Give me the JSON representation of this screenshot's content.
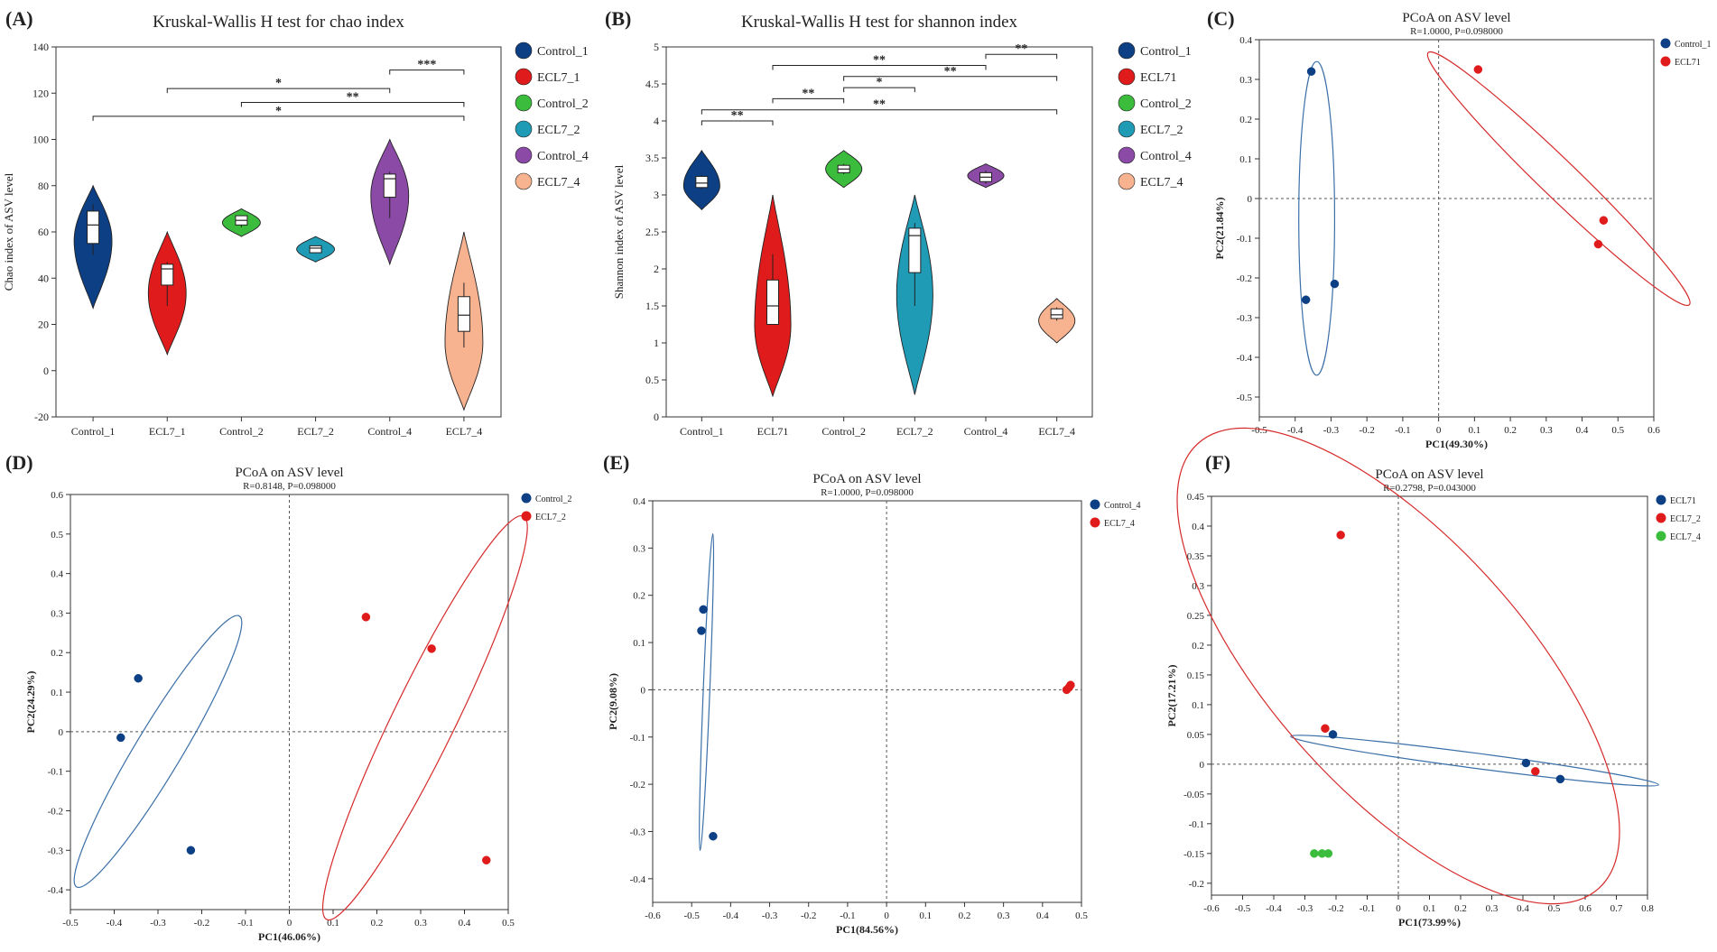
{
  "colors": {
    "navy": "#0d3f85",
    "red": "#e01b1b",
    "green": "#3cbc3c",
    "teal": "#1f9bb6",
    "purple": "#8a4aa6",
    "salmon": "#f7b28f",
    "blue_ellipse": "#3a6fa8",
    "red_ellipse": "#d62a2a"
  },
  "chart_data": [
    {
      "id": "A",
      "panel_label": "(A)",
      "type": "violin",
      "title": "Kruskal-Wallis H test for chao index",
      "ylabel": "Chao index of ASV level",
      "ylim": [
        -20,
        140
      ],
      "yticks": [
        -20,
        0,
        20,
        40,
        60,
        80,
        100,
        120,
        140
      ],
      "categories": [
        "Control_1",
        "ECL7_1",
        "Control_2",
        "ECL7_2",
        "Control_4",
        "ECL7_4"
      ],
      "colors": [
        "#0d3f85",
        "#e01b1b",
        "#3cbc3c",
        "#1f9bb6",
        "#8a4aa6",
        "#f7b28f"
      ],
      "violins": [
        {
          "min": 27,
          "max": 80,
          "peak": 0.55,
          "halfwidth": 0.85,
          "box": [
            55,
            69
          ],
          "median": 63,
          "whisker": [
            50,
            72
          ]
        },
        {
          "min": 7,
          "max": 60,
          "peak": 0.5,
          "halfwidth": 0.85,
          "box": [
            37,
            46
          ],
          "median": 44,
          "whisker": [
            28,
            47
          ]
        },
        {
          "min": 58,
          "max": 70,
          "peak": 0.5,
          "halfwidth": 0.85,
          "box": [
            63,
            67
          ],
          "median": 65,
          "whisker": [
            62,
            67
          ]
        },
        {
          "min": 47,
          "max": 58,
          "peak": 0.5,
          "halfwidth": 0.85,
          "box": [
            51,
            54
          ],
          "median": 53,
          "whisker": [
            51,
            54
          ]
        },
        {
          "min": 46,
          "max": 100,
          "peak": 0.55,
          "halfwidth": 0.85,
          "box": [
            75,
            85
          ],
          "median": 83,
          "whisker": [
            66,
            86
          ]
        },
        {
          "min": -17,
          "max": 60,
          "peak": 0.38,
          "halfwidth": 0.85,
          "box": [
            17,
            32
          ],
          "median": 24,
          "whisker": [
            10,
            38
          ]
        }
      ],
      "significance": [
        {
          "from": 1,
          "to": 4,
          "y": 122,
          "label": "*"
        },
        {
          "from": 4,
          "to": 5,
          "y": 130,
          "label": "***"
        },
        {
          "from": 2,
          "to": 5,
          "y": 116,
          "label": "**"
        },
        {
          "from": 0,
          "to": 5,
          "y": 110,
          "label": "*"
        }
      ],
      "legend": [
        "Control_1",
        "ECL7_1",
        "Control_2",
        "ECL7_2",
        "Control_4",
        "ECL7_4"
      ]
    },
    {
      "id": "B",
      "panel_label": "(B)",
      "type": "violin",
      "title": "Kruskal-Wallis H test for shannon index",
      "ylabel": "Shannon index of ASV level",
      "ylim": [
        0,
        5
      ],
      "yticks": [
        0,
        0.5,
        1,
        1.5,
        2,
        2.5,
        3,
        3.5,
        4,
        4.5,
        5
      ],
      "categories": [
        "Control_1",
        "ECL71",
        "Control_2",
        "ECL7_2",
        "Control_4",
        "ECL7_4"
      ],
      "colors": [
        "#0d3f85",
        "#e01b1b",
        "#3cbc3c",
        "#1f9bb6",
        "#8a4aa6",
        "#f7b28f"
      ],
      "violins": [
        {
          "min": 2.8,
          "max": 3.6,
          "peak": 0.4,
          "halfwidth": 0.85,
          "box": [
            3.1,
            3.25
          ],
          "median": 3.16,
          "whisker": [
            3.08,
            3.27
          ]
        },
        {
          "min": 0.28,
          "max": 3.0,
          "peak": 0.35,
          "halfwidth": 0.85,
          "box": [
            1.25,
            1.85
          ],
          "median": 1.5,
          "whisker": [
            1.25,
            2.2
          ]
        },
        {
          "min": 3.1,
          "max": 3.6,
          "peak": 0.5,
          "halfwidth": 0.85,
          "box": [
            3.3,
            3.4
          ],
          "median": 3.35,
          "whisker": [
            3.28,
            3.42
          ]
        },
        {
          "min": 0.3,
          "max": 3.0,
          "peak": 0.5,
          "halfwidth": 0.85,
          "box": [
            1.95,
            2.55
          ],
          "median": 2.45,
          "whisker": [
            1.5,
            2.62
          ]
        },
        {
          "min": 3.1,
          "max": 3.42,
          "peak": 0.5,
          "halfwidth": 0.85,
          "box": [
            3.18,
            3.3
          ],
          "median": 3.24,
          "whisker": [
            3.15,
            3.33
          ]
        },
        {
          "min": 1.0,
          "max": 1.6,
          "peak": 0.5,
          "halfwidth": 0.85,
          "box": [
            1.33,
            1.46
          ],
          "median": 1.38,
          "whisker": [
            1.3,
            1.48
          ]
        }
      ],
      "significance": [
        {
          "from": 4,
          "to": 5,
          "y": 4.9,
          "label": "**"
        },
        {
          "from": 1,
          "to": 4,
          "y": 4.75,
          "label": "**"
        },
        {
          "from": 2,
          "to": 5,
          "y": 4.6,
          "label": "**"
        },
        {
          "from": 2,
          "to": 3,
          "y": 4.45,
          "label": "*"
        },
        {
          "from": 1,
          "to": 2,
          "y": 4.3,
          "label": "**"
        },
        {
          "from": 0,
          "to": 5,
          "y": 4.15,
          "label": "**"
        },
        {
          "from": 0,
          "to": 1,
          "y": 4.0,
          "label": "**"
        }
      ],
      "legend": [
        "Control_1",
        "ECL71",
        "Control_2",
        "ECL7_2",
        "Control_4",
        "ECL7_4"
      ]
    },
    {
      "id": "C",
      "panel_label": "(C)",
      "type": "scatter",
      "title": "PCoA on ASV level",
      "subtitle": "R=1.0000, P=0.098000",
      "xlabel": "PC1(49.30%)",
      "ylabel": "PC2(21.84%)",
      "xlim": [
        -0.5,
        0.6
      ],
      "ylim": [
        -0.55,
        0.4
      ],
      "xticks": [
        -0.5,
        -0.4,
        -0.3,
        -0.2,
        -0.1,
        0,
        0.1,
        0.2,
        0.3,
        0.4,
        0.5,
        0.6
      ],
      "yticks": [
        -0.5,
        -0.4,
        -0.3,
        -0.2,
        -0.1,
        0,
        0.1,
        0.2,
        0.3,
        0.4
      ],
      "series": [
        {
          "name": "Control_1",
          "color": "#0d3f85",
          "points": [
            [
              -0.355,
              0.32
            ],
            [
              -0.37,
              -0.255
            ],
            [
              -0.29,
              -0.215
            ]
          ],
          "ellipse": {
            "cx": -0.34,
            "cy": -0.05,
            "rx": 0.05,
            "ry": 0.395,
            "angle": 0,
            "color": "#3a6fa8"
          }
        },
        {
          "name": "ECL71",
          "color": "#e01b1b",
          "points": [
            [
              0.11,
              0.325
            ],
            [
              0.46,
              -0.055
            ],
            [
              0.445,
              -0.115
            ]
          ],
          "ellipse": {
            "cx": 0.335,
            "cy": 0.05,
            "rx": 0.34,
            "ry": 0.035,
            "angle": -44,
            "color": "#d62a2a"
          }
        }
      ],
      "legend": [
        "Control_1",
        "ECL71"
      ]
    },
    {
      "id": "D",
      "panel_label": "(D)",
      "type": "scatter",
      "title": "PCoA on ASV level",
      "subtitle": "R=0.8148, P=0.098000",
      "xlabel": "PC1(46.06%)",
      "ylabel": "PC2(24.29%)",
      "xlim": [
        -0.5,
        0.5
      ],
      "ylim": [
        -0.45,
        0.6
      ],
      "xticks": [
        -0.5,
        -0.4,
        -0.3,
        -0.2,
        -0.1,
        0,
        0.1,
        0.2,
        0.3,
        0.4,
        0.5
      ],
      "yticks": [
        -0.4,
        -0.3,
        -0.2,
        -0.1,
        0,
        0.1,
        0.2,
        0.3,
        0.4,
        0.5,
        0.6
      ],
      "series": [
        {
          "name": "Control_2",
          "color": "#0d3f85",
          "points": [
            [
              -0.345,
              0.135
            ],
            [
              -0.385,
              -0.015
            ],
            [
              -0.225,
              -0.3
            ]
          ],
          "ellipse": {
            "cx": -0.3,
            "cy": -0.05,
            "rx": 0.28,
            "ry": 0.04,
            "angle": 59,
            "color": "#3a6fa8"
          }
        },
        {
          "name": "ECL7_2",
          "color": "#e01b1b",
          "points": [
            [
              0.175,
              0.29
            ],
            [
              0.325,
              0.21
            ],
            [
              0.45,
              -0.325
            ]
          ],
          "ellipse": {
            "cx": 0.31,
            "cy": 0.035,
            "rx": 0.41,
            "ry": 0.055,
            "angle": 64,
            "color": "#d62a2a"
          }
        }
      ],
      "legend": [
        "Control_2",
        "ECL7_2"
      ]
    },
    {
      "id": "E",
      "panel_label": "(E)",
      "type": "scatter",
      "title": "PCoA on ASV level",
      "subtitle": "R=1.0000, P=0.098000",
      "xlabel": "PC1(84.56%)",
      "ylabel": "PC2(9.08%)",
      "xlim": [
        -0.6,
        0.5
      ],
      "ylim": [
        -0.45,
        0.4
      ],
      "xticks": [
        -0.6,
        -0.5,
        -0.4,
        -0.3,
        -0.2,
        -0.1,
        0,
        0.1,
        0.2,
        0.3,
        0.4,
        0.5
      ],
      "yticks": [
        -0.4,
        -0.3,
        -0.2,
        -0.1,
        0,
        0.1,
        0.2,
        0.3,
        0.4
      ],
      "series": [
        {
          "name": "Control_4",
          "color": "#0d3f85",
          "points": [
            [
              -0.47,
              0.17
            ],
            [
              -0.475,
              0.125
            ],
            [
              -0.445,
              -0.31
            ]
          ],
          "ellipse": {
            "cx": -0.462,
            "cy": -0.005,
            "rx": 0.325,
            "ry": 0.008,
            "angle": 87.7,
            "color": "#3a6fa8"
          }
        },
        {
          "name": "ECL7_4",
          "color": "#e01b1b",
          "points": [
            [
              0.462,
              0.0
            ],
            [
              0.468,
              0.005
            ],
            [
              0.472,
              0.01
            ]
          ],
          "ellipse": null
        }
      ],
      "legend": [
        "Control_4",
        "ECL7_4"
      ]
    },
    {
      "id": "F",
      "panel_label": "(F)",
      "type": "scatter",
      "title": "PCoA on ASV level",
      "subtitle": "R=0.2798, P=0.043000",
      "xlabel": "PC1(73.99%)",
      "ylabel": "PC2(17.21%)",
      "xlim": [
        -0.6,
        0.8
      ],
      "ylim": [
        -0.22,
        0.45
      ],
      "xticks": [
        -0.6,
        -0.5,
        -0.4,
        -0.3,
        -0.2,
        -0.1,
        0,
        0.1,
        0.2,
        0.3,
        0.4,
        0.5,
        0.6,
        0.7,
        0.8
      ],
      "yticks": [
        -0.2,
        -0.15,
        -0.1,
        -0.05,
        0,
        0.05,
        0.1,
        0.15,
        0.2,
        0.25,
        0.3,
        0.35,
        0.4,
        0.45
      ],
      "series": [
        {
          "name": "ECL71",
          "color": "#0d3f85",
          "points": [
            [
              -0.21,
              0.05
            ],
            [
              0.41,
              0.002
            ],
            [
              0.52,
              -0.025
            ]
          ],
          "ellipse": {
            "cx": 0.245,
            "cy": 0.006,
            "rx": 0.48,
            "ry": 0.012,
            "angle": -7.5,
            "color": "#3a6fa8"
          }
        },
        {
          "name": "ECL7_2",
          "color": "#e01b1b",
          "points": [
            [
              -0.185,
              0.385
            ],
            [
              -0.235,
              0.06
            ],
            [
              0.44,
              -0.012
            ]
          ],
          "ellipse": {
            "cx": 0.0,
            "cy": 0.165,
            "rx": 0.46,
            "ry": 0.2,
            "angle": -48,
            "color": "#d62a2a"
          }
        },
        {
          "name": "ECL7_4",
          "color": "#3cbc3c",
          "points": [
            [
              -0.27,
              -0.15
            ],
            [
              -0.245,
              -0.15
            ],
            [
              -0.225,
              -0.15
            ]
          ],
          "ellipse": null
        }
      ],
      "legend": [
        "ECL71",
        "ECL7_2",
        "ECL7_4"
      ]
    }
  ]
}
